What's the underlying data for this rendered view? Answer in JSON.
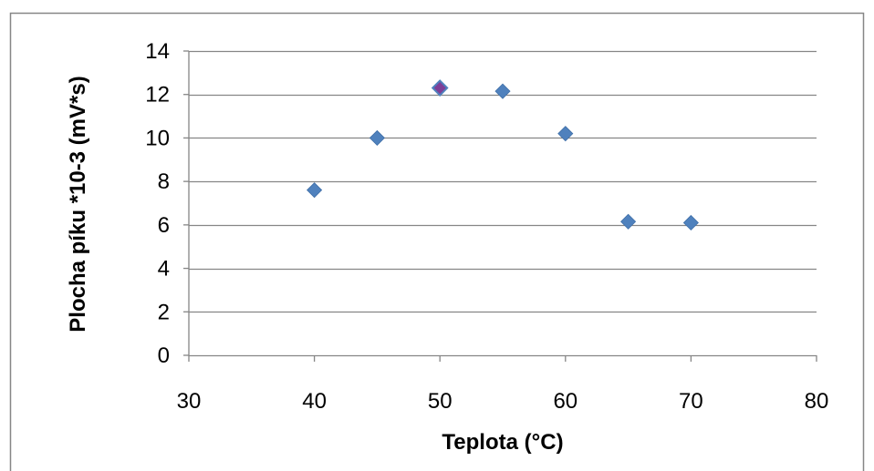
{
  "chart_data": {
    "type": "scatter",
    "title": "",
    "xlabel": "Teplota (°C)",
    "ylabel": "Plocha píku *10-3 (mV*s)",
    "xlim": [
      30,
      80
    ],
    "ylim": [
      0,
      14
    ],
    "x_ticks": [
      30,
      40,
      50,
      60,
      70,
      80
    ],
    "y_ticks": [
      0,
      2,
      4,
      6,
      8,
      10,
      12,
      14
    ],
    "grid": "horizontal",
    "legend": "none",
    "series": [
      {
        "marker": "diamond",
        "color": "#4F81BD",
        "points": [
          {
            "x": 40,
            "y": 7.6
          },
          {
            "x": 45,
            "y": 10.0
          },
          {
            "x": 50,
            "y": 12.3,
            "color": "#7E3F98"
          },
          {
            "x": 55,
            "y": 12.15
          },
          {
            "x": 60,
            "y": 10.2
          },
          {
            "x": 65,
            "y": 6.15
          },
          {
            "x": 70,
            "y": 6.1
          }
        ]
      }
    ]
  },
  "colors": {
    "border": "#868686",
    "gridline": "#868686",
    "axis": "#868686",
    "marker": "#4F81BD",
    "marker_highlight": "#7E3F98"
  }
}
